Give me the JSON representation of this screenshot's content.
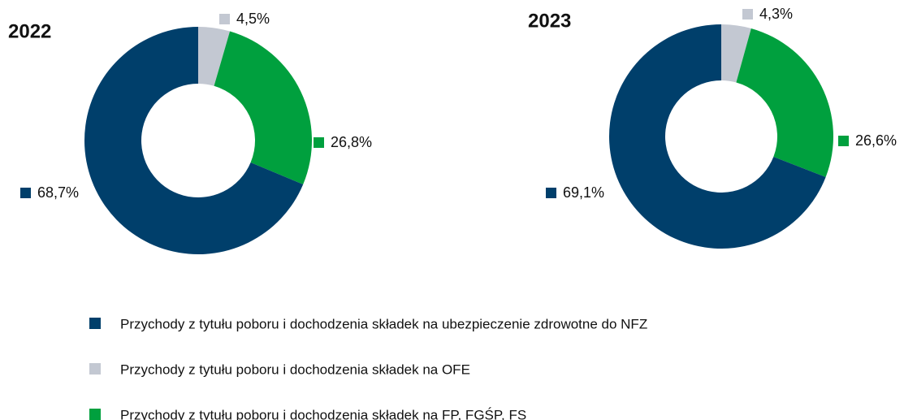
{
  "chart_data": [
    {
      "type": "pie",
      "title": "2022",
      "values": [
        68.7,
        4.5,
        26.8
      ],
      "value_labels": [
        "68,7%",
        "4,5%",
        "26,8%"
      ]
    },
    {
      "type": "pie",
      "title": "2023",
      "values": [
        69.1,
        4.3,
        26.6
      ],
      "value_labels": [
        "69,1%",
        "4,3%",
        "26,6%"
      ]
    }
  ],
  "legend": {
    "labels": [
      "Przychody z tytułu poboru i dochodzenia składek na ubezpieczenie zdrowotne do NFZ",
      "Przychody z tytułu poboru i dochodzenia składek na OFE",
      "Przychody z tytułu poboru i dochodzenia składek na FP, FGŚP, FS"
    ],
    "colors": [
      "#003f6b",
      "#c3c8d2",
      "#00a03e"
    ]
  }
}
